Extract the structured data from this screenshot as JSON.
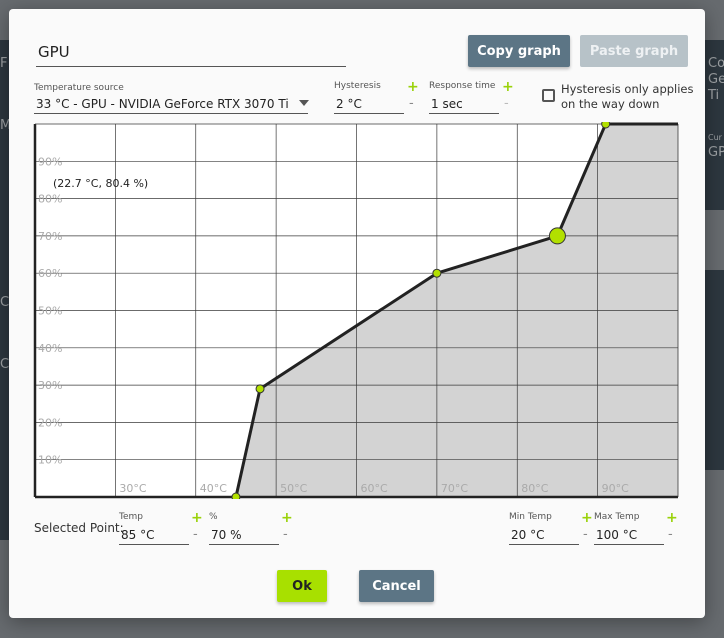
{
  "background": {
    "left_labels": [
      "F",
      "C",
      "M",
      "C",
      "C"
    ],
    "right_card": [
      "Co",
      "Ge",
      "Ti"
    ],
    "right_card2": [
      "Cur",
      "GP"
    ]
  },
  "dialog": {
    "name": "GPU",
    "copy_label": "Copy graph",
    "paste_label": "Paste graph",
    "temperature_source": {
      "label": "Temperature source",
      "value": "33 °C - GPU - NVIDIA GeForce RTX 3070 Ti"
    },
    "hysteresis": {
      "label": "Hysteresis",
      "value": "2 °C",
      "plus": "+",
      "minus": "-"
    },
    "response_time": {
      "label": "Response time",
      "value": "1 sec",
      "plus": "+",
      "minus": "-"
    },
    "hysteresis_checkbox": {
      "label": "Hysteresis only applies on the way down",
      "checked": false
    },
    "selected_point_label": "Selected Point:",
    "selected_temp": {
      "label": "Temp",
      "value": "85 °C",
      "plus": "+",
      "minus": "-"
    },
    "selected_percent": {
      "label": "%",
      "value": "70 %",
      "plus": "+",
      "minus": "-"
    },
    "min_temp": {
      "label": "Min Temp",
      "value": "20 °C",
      "plus": "+",
      "minus": "-"
    },
    "max_temp": {
      "label": "Max Temp",
      "value": "100 °C",
      "plus": "+",
      "minus": "-"
    },
    "ok_label": "Ok",
    "cancel_label": "Cancel"
  },
  "chart_data": {
    "type": "area",
    "x_ticks": [
      "30°C",
      "40°C",
      "50°C",
      "60°C",
      "70°C",
      "80°C",
      "90°C"
    ],
    "y_ticks": [
      "10%",
      "20%",
      "30%",
      "40%",
      "50%",
      "60%",
      "70%",
      "80%",
      "90%"
    ],
    "xlim": [
      20,
      100
    ],
    "ylim": [
      0,
      100
    ],
    "grid": true,
    "cursor_readout": "(22.7 °C, 80.4 %)",
    "curve": [
      {
        "x": 45,
        "y": 0
      },
      {
        "x": 48,
        "y": 29
      },
      {
        "x": 70,
        "y": 60
      },
      {
        "x": 85,
        "y": 70
      },
      {
        "x": 91,
        "y": 100
      },
      {
        "x": 100,
        "y": 100
      }
    ],
    "selected_index": 3,
    "colors": {
      "fill": "#d3d3d3",
      "line": "#222222",
      "point": "#b2e000",
      "grid": "#3a3a3a"
    }
  }
}
